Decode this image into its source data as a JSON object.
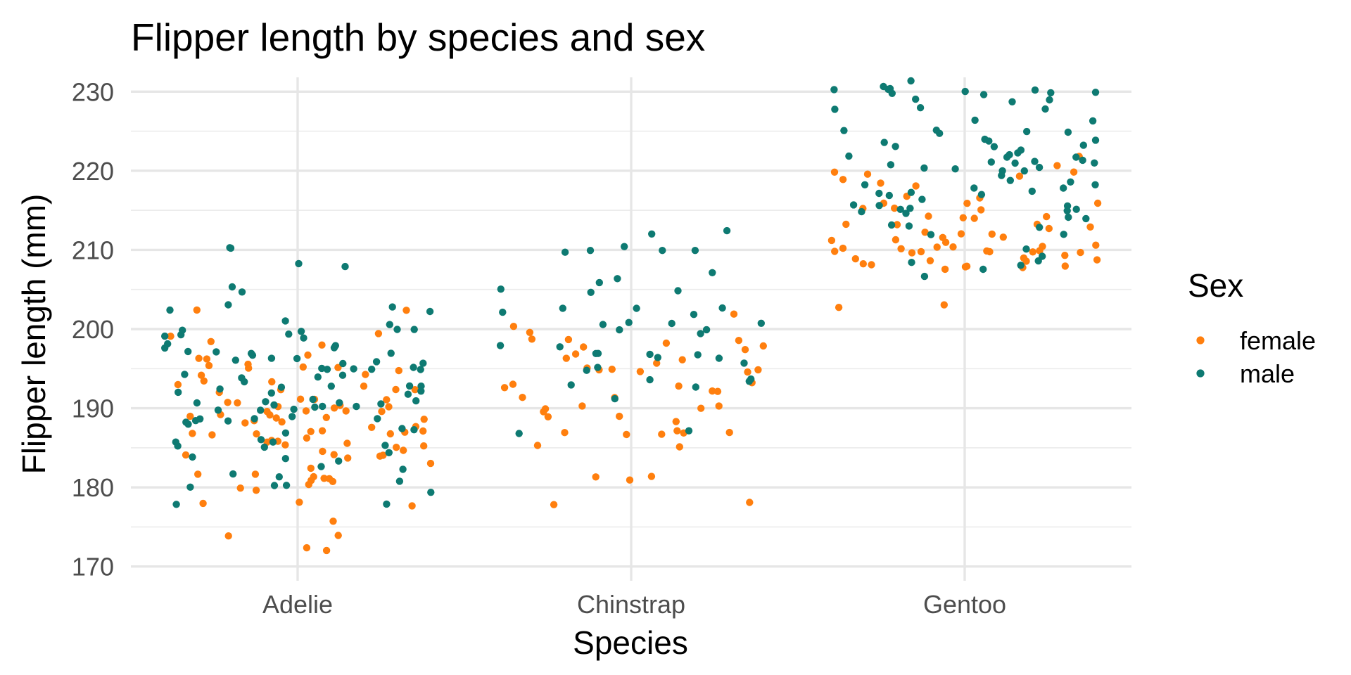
{
  "chart_data": {
    "type": "scatter",
    "title": "Flipper length by species and sex",
    "xlabel": "Species",
    "ylabel": "Flipper length (mm)",
    "categories": [
      "Adelie",
      "Chinstrap",
      "Gentoo"
    ],
    "ylim": [
      168.2,
      231.8
    ],
    "yticks": [
      170,
      180,
      190,
      200,
      210,
      220,
      230
    ],
    "grid": true,
    "jitter": true,
    "legend": {
      "title": "Sex",
      "position": "right"
    },
    "series": [
      {
        "name": "female",
        "color": "#FF7F0E",
        "points": {
          "Adelie": [
            172,
            172,
            174,
            174,
            176,
            178,
            178,
            178,
            180,
            180,
            180,
            181,
            181,
            181,
            181,
            181,
            182,
            182,
            182,
            183,
            184,
            184,
            184,
            184,
            184,
            185,
            185,
            185,
            185,
            185,
            186,
            186,
            186,
            186,
            186,
            187,
            187,
            187,
            187,
            187,
            187,
            187,
            187,
            188,
            188,
            188,
            188,
            188,
            189,
            189,
            189,
            189,
            189,
            189,
            190,
            190,
            190,
            190,
            190,
            190,
            190,
            190,
            191,
            191,
            191,
            191,
            191,
            192,
            192,
            192,
            192,
            193,
            193,
            193,
            193,
            194,
            194,
            195,
            195,
            195,
            195,
            195,
            196,
            196,
            196,
            197,
            198,
            198,
            199,
            199,
            202,
            202
          ],
          "Chinstrap": [
            178,
            178,
            181,
            181,
            181,
            185,
            185,
            187,
            187,
            187,
            187,
            187,
            187,
            188,
            189,
            189,
            190,
            190,
            190,
            190,
            190,
            191,
            191,
            192,
            192,
            193,
            193,
            193,
            193,
            195,
            195,
            195,
            195,
            195,
            195,
            196,
            196,
            196,
            197,
            197,
            198,
            198,
            198,
            199,
            199,
            199,
            200,
            200,
            202
          ],
          "Gentoo": [
            203,
            203,
            208,
            208,
            208,
            208,
            208,
            208,
            208,
            209,
            209,
            209,
            209,
            209,
            209,
            210,
            210,
            210,
            210,
            210,
            210,
            210,
            210,
            210,
            210,
            210,
            210,
            210,
            211,
            211,
            211,
            211,
            212,
            212,
            212,
            212,
            212,
            213,
            213,
            213,
            213,
            213,
            214,
            214,
            214,
            214,
            215,
            215,
            215,
            216,
            216,
            216,
            217,
            217,
            218,
            218,
            219,
            219,
            220,
            220,
            220,
            221,
            222
          ]
        }
      },
      {
        "name": "male",
        "color": "#0E7A72",
        "points": {
          "Adelie": [
            178,
            178,
            179,
            180,
            180,
            180,
            181,
            181,
            182,
            182,
            183,
            183,
            184,
            184,
            184,
            185,
            185,
            185,
            186,
            186,
            186,
            187,
            187,
            187,
            188,
            188,
            188,
            188,
            189,
            189,
            189,
            189,
            190,
            190,
            190,
            190,
            190,
            190,
            190,
            191,
            191,
            191,
            191,
            191,
            191,
            192,
            192,
            192,
            192,
            192,
            193,
            193,
            193,
            193,
            193,
            194,
            194,
            194,
            194,
            195,
            195,
            195,
            195,
            195,
            195,
            196,
            196,
            196,
            196,
            196,
            196,
            197,
            197,
            197,
            197,
            197,
            198,
            198,
            198,
            198,
            199,
            199,
            199,
            199,
            200,
            200,
            200,
            200,
            201,
            201,
            202,
            202,
            203,
            203,
            205,
            205,
            208,
            208,
            210,
            210
          ],
          "Chinstrap": [
            187,
            187,
            191,
            193,
            193,
            193,
            194,
            194,
            195,
            195,
            196,
            196,
            196,
            197,
            197,
            197,
            197,
            198,
            198,
            199,
            200,
            200,
            201,
            201,
            201,
            201,
            202,
            202,
            203,
            203,
            203,
            205,
            205,
            205,
            206,
            206,
            207,
            210,
            210,
            210,
            210,
            210,
            212,
            212
          ],
          "Gentoo": [
            207,
            208,
            208,
            208,
            209,
            209,
            210,
            212,
            212,
            213,
            213,
            213,
            214,
            214,
            215,
            215,
            215,
            215,
            215,
            215,
            216,
            216,
            216,
            216,
            217,
            217,
            217,
            217,
            217,
            218,
            218,
            218,
            218,
            219,
            219,
            219,
            220,
            220,
            220,
            220,
            220,
            221,
            221,
            221,
            221,
            221,
            221,
            222,
            222,
            222,
            222,
            222,
            223,
            223,
            223,
            223,
            224,
            224,
            224,
            224,
            225,
            225,
            225,
            225,
            225,
            226,
            226,
            228,
            228,
            228,
            229,
            229,
            229,
            230,
            230,
            230,
            230,
            230,
            230,
            230,
            230,
            230,
            231,
            231
          ]
        }
      }
    ]
  }
}
